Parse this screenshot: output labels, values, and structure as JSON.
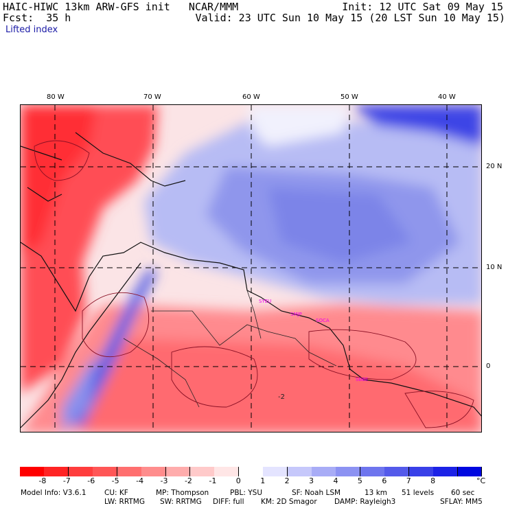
{
  "header": {
    "title_left": "HAIC-HIWC 13km ARW-GFS init   NCAR/MMM",
    "init": "Init: 12 UTC Sat 09 May 15",
    "fcst": "Fcst:  35 h",
    "valid": "Valid: 23 UTC Sun 10 May 15 (20 LST Sun 10 May 15)",
    "field": "Lifted index"
  },
  "map": {
    "lon_labels": [
      "80 W",
      "70 W",
      "60 W",
      "50 W",
      "40 W"
    ],
    "lat_labels": [
      "20 N",
      "10 N",
      "0"
    ],
    "stations": [
      "SYEU",
      "SMJP",
      "SOCA",
      "SBBE"
    ],
    "contour_label": "-2",
    "colors": {
      "negative": "#e8343a",
      "positive": "#4a5ce0",
      "neutral": "#ffffff",
      "station": "#ee00ee",
      "grid": "#000000"
    }
  },
  "colorbar": {
    "labels": [
      "-8",
      "-7",
      "-6",
      "-5",
      "-4",
      "-3",
      "-2",
      "-1",
      "0",
      "1",
      "2",
      "3",
      "4",
      "5",
      "6",
      "7",
      "8"
    ],
    "unit": "°C",
    "colors": [
      "#ff0000",
      "#ff2424",
      "#ff3d3d",
      "#ff5656",
      "#ff6f6f",
      "#ff8d8d",
      "#ffacac",
      "#ffcaca",
      "#ffe6e6",
      "#ffffff",
      "#e4e4ff",
      "#c6c8fb",
      "#a8acf6",
      "#8c92f2",
      "#6e75ee",
      "#545aea",
      "#3940e8",
      "#1c22e6",
      "#0008e0"
    ]
  },
  "footer": {
    "line1": [
      {
        "text": "Model Info: V3.6.1",
        "pos": "l1"
      },
      {
        "text": "CU: KF",
        "pos": "l2"
      },
      {
        "text": "MP: Thompson",
        "pos": "l3"
      },
      {
        "text": "PBL: YSU",
        "pos": "l4"
      },
      {
        "text": "SF: Noah LSM",
        "pos": "l5"
      },
      {
        "text": "13 km",
        "pos": "l6"
      },
      {
        "text": "51 levels",
        "pos": "l7"
      },
      {
        "text": "60 sec",
        "pos": "l8"
      }
    ],
    "line2": [
      {
        "text": "LW: RRTMG",
        "pos": "m1"
      },
      {
        "text": "SW: RRTMG",
        "pos": "m2"
      },
      {
        "text": "DIFF: full",
        "pos": "m3"
      },
      {
        "text": "KM: 2D Smagor",
        "pos": "m4"
      },
      {
        "text": "DAMP: Rayleigh3",
        "pos": "m5"
      },
      {
        "text": "SFLAY: MM5",
        "pos": "m6"
      }
    ]
  }
}
